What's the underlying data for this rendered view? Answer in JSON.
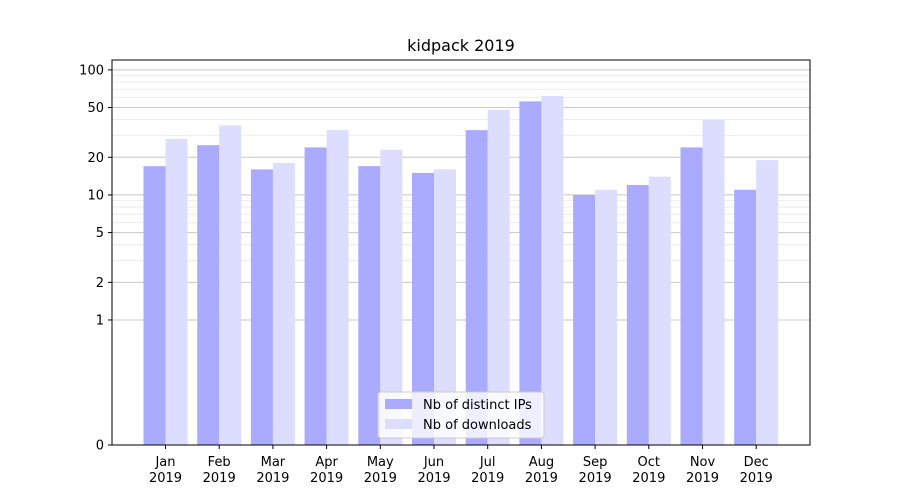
{
  "chart_data": {
    "type": "bar",
    "title": "kidpack 2019",
    "xlabel": "",
    "ylabel": "",
    "y_scale": "symlog",
    "ylim": [
      0,
      120
    ],
    "y_ticks": [
      0,
      1,
      2,
      5,
      10,
      20,
      50,
      100
    ],
    "y_tick_labels": [
      "0",
      "1",
      "2",
      "5",
      "10",
      "20",
      "50",
      "100"
    ],
    "grid": true,
    "legend_position": "bottom-center",
    "categories": [
      [
        "Jan",
        "2019"
      ],
      [
        "Feb",
        "2019"
      ],
      [
        "Mar",
        "2019"
      ],
      [
        "Apr",
        "2019"
      ],
      [
        "May",
        "2019"
      ],
      [
        "Jun",
        "2019"
      ],
      [
        "Jul",
        "2019"
      ],
      [
        "Aug",
        "2019"
      ],
      [
        "Sep",
        "2019"
      ],
      [
        "Oct",
        "2019"
      ],
      [
        "Nov",
        "2019"
      ],
      [
        "Dec",
        "2019"
      ]
    ],
    "series": [
      {
        "name": "Nb of distinct IPs",
        "color": "#aaaaff",
        "values": [
          17,
          25,
          16,
          24,
          17,
          15,
          33,
          56,
          10,
          12,
          24,
          11
        ]
      },
      {
        "name": "Nb of downloads",
        "color": "#ddddff",
        "values": [
          28,
          36,
          18,
          33,
          23,
          16,
          48,
          62,
          11,
          14,
          40,
          19
        ]
      }
    ]
  }
}
